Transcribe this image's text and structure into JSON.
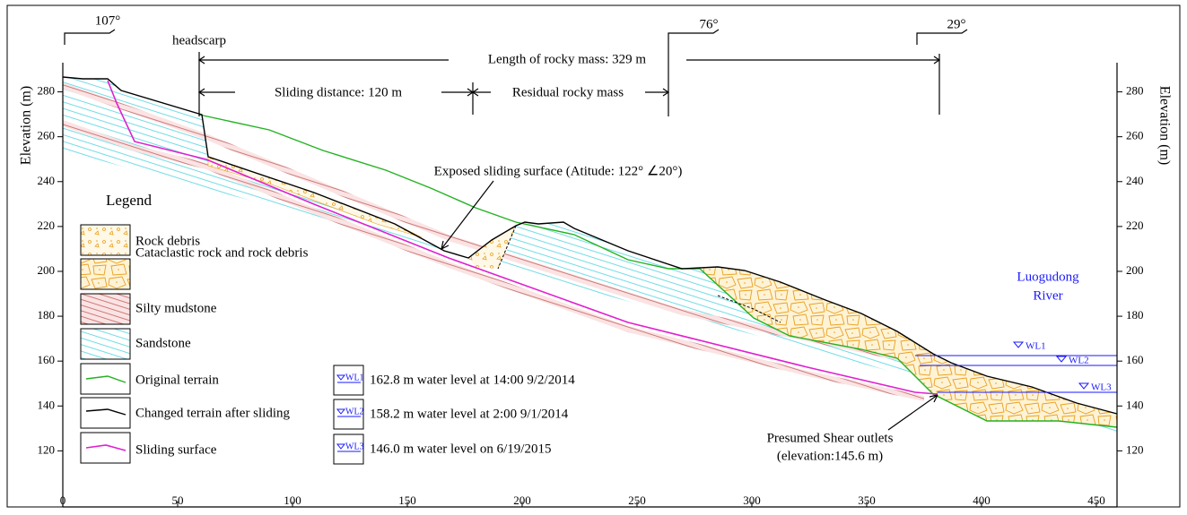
{
  "annotations": {
    "bearing_left": "107°",
    "headscarp": "headscarp",
    "length": "Length of rocky mass: 329 m",
    "sliding_distance": "Sliding distance: 120 m",
    "residual": "Residual rocky mass",
    "bearing_mid": "76°",
    "bearing_right": "29°",
    "exposed_surface": "Exposed sliding surface (Atitude: 122° ∠20°)",
    "shear_outlet_line1": "Presumed Shear outlets",
    "shear_outlet_line2": "(elevation:145.6 m)"
  },
  "river": {
    "line1": "Luogudong",
    "line2": "River"
  },
  "axes": {
    "x": {
      "lim": [
        0,
        459
      ],
      "ticks": [
        0,
        50,
        100,
        150,
        200,
        250,
        300,
        350,
        400,
        450
      ]
    },
    "y": {
      "label": "Elevation (m)",
      "lim": [
        95,
        293
      ],
      "ticks": [
        120,
        140,
        160,
        180,
        200,
        220,
        240,
        260,
        280
      ]
    }
  },
  "legend": {
    "title": "Legend",
    "items": [
      "Rock debris",
      "Cataclastic rock and rock debris",
      "Silty mudstone",
      "Sandstone",
      "Original terrain",
      "Changed terrain after sliding",
      "Sliding surface"
    ]
  },
  "water_levels": [
    {
      "symbol": "WL1",
      "label": "162.8 m water level at 14:00 9/2/2014"
    },
    {
      "symbol": "WL2",
      "label": "158.2 m water level at 2:00 9/1/2014"
    },
    {
      "symbol": "WL3",
      "label": "146.0 m water level on 6/19/2015"
    }
  ]
}
